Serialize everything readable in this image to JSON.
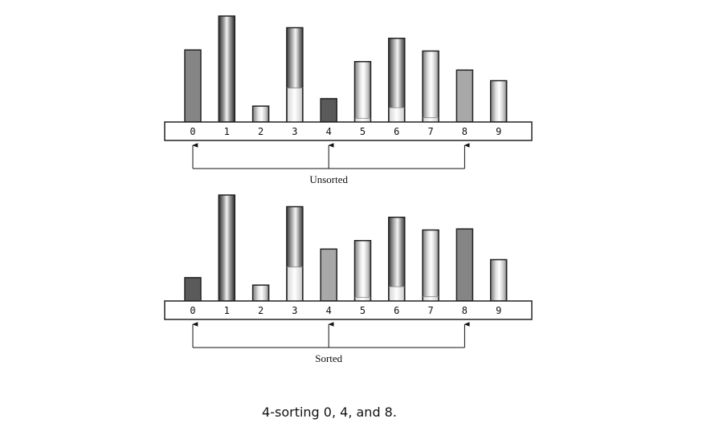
{
  "diagrams": [
    {
      "id": "unsorted",
      "label": "Unsorted",
      "bars": [
        {
          "index": "0",
          "height": 0.68,
          "style": "solid-mid"
        },
        {
          "index": "1",
          "height": 1.0,
          "style": "tube-dark"
        },
        {
          "index": "2",
          "height": 0.15,
          "style": "tube-light"
        },
        {
          "index": "3",
          "height": 0.89,
          "style": "tube-tall",
          "fill": 0.36
        },
        {
          "index": "4",
          "height": 0.22,
          "style": "solid-dark"
        },
        {
          "index": "5",
          "height": 0.57,
          "style": "tube-light",
          "fill": 0.06
        },
        {
          "index": "6",
          "height": 0.79,
          "style": "tube-tall",
          "fill": 0.17
        },
        {
          "index": "7",
          "height": 0.67,
          "style": "tube-light",
          "fill": 0.06
        },
        {
          "index": "8",
          "height": 0.49,
          "style": "solid-light"
        },
        {
          "index": "9",
          "height": 0.39,
          "style": "tube-light"
        }
      ],
      "arrow_indices": [
        0,
        4,
        8
      ]
    },
    {
      "id": "sorted",
      "label": "Sorted",
      "bars": [
        {
          "index": "0",
          "height": 0.22,
          "style": "solid-dark"
        },
        {
          "index": "1",
          "height": 1.0,
          "style": "tube-dark"
        },
        {
          "index": "2",
          "height": 0.15,
          "style": "tube-light"
        },
        {
          "index": "3",
          "height": 0.89,
          "style": "tube-tall",
          "fill": 0.36
        },
        {
          "index": "4",
          "height": 0.49,
          "style": "solid-light"
        },
        {
          "index": "5",
          "height": 0.57,
          "style": "tube-light",
          "fill": 0.06
        },
        {
          "index": "6",
          "height": 0.79,
          "style": "tube-tall",
          "fill": 0.17
        },
        {
          "index": "7",
          "height": 0.67,
          "style": "tube-light",
          "fill": 0.06
        },
        {
          "index": "8",
          "height": 0.68,
          "style": "solid-mid"
        },
        {
          "index": "9",
          "height": 0.39,
          "style": "tube-light"
        }
      ],
      "arrow_indices": [
        0,
        4,
        8
      ]
    }
  ],
  "caption": "4-sorting 0, 4, and 8.",
  "colors": {
    "solid_dark": "#5a5a5a",
    "solid_mid": "#858585",
    "solid_light": "#a8a8a8",
    "outline": "#222222"
  }
}
